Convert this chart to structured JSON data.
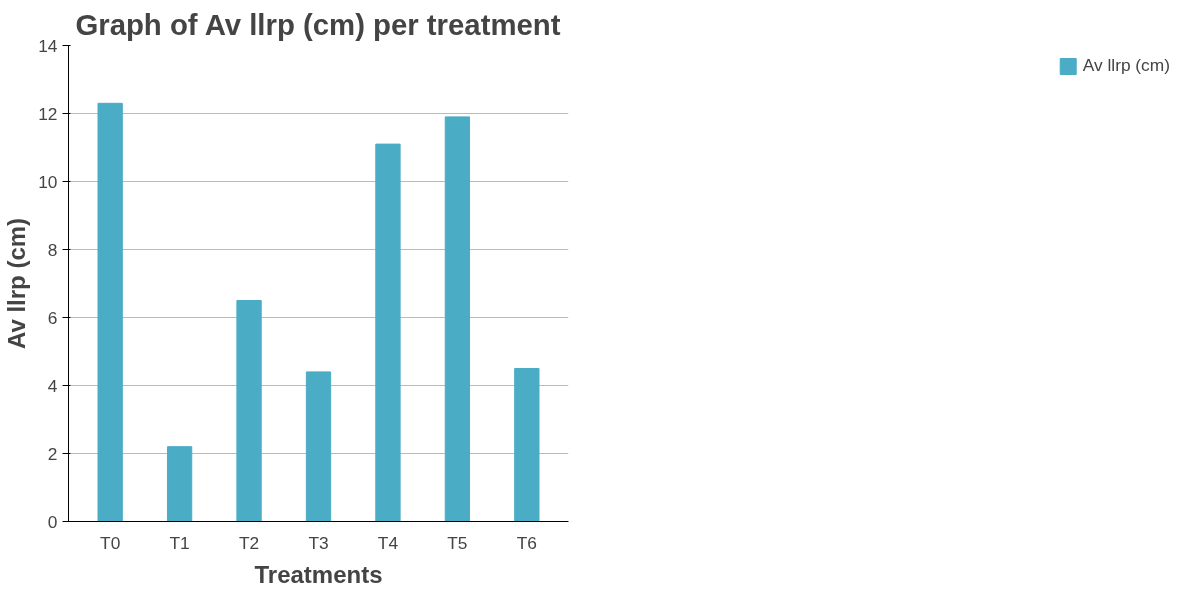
{
  "chart_data": {
    "type": "bar",
    "title": "Graph of Av llrp (cm) per treatment",
    "xlabel": "Treatments",
    "ylabel": "Av llrp (cm)",
    "categories": [
      "T0",
      "T1",
      "T2",
      "T3",
      "T4",
      "T5",
      "T6"
    ],
    "series": [
      {
        "name": "Av llrp (cm)",
        "color": "#4bacc6",
        "values": [
          12.3,
          2.2,
          6.5,
          4.4,
          11.1,
          11.9,
          4.5
        ]
      }
    ],
    "ylim": [
      0,
      14
    ],
    "yticks": [
      0,
      2,
      4,
      6,
      8,
      10,
      12,
      14
    ],
    "grid": "y",
    "legend": "right"
  }
}
